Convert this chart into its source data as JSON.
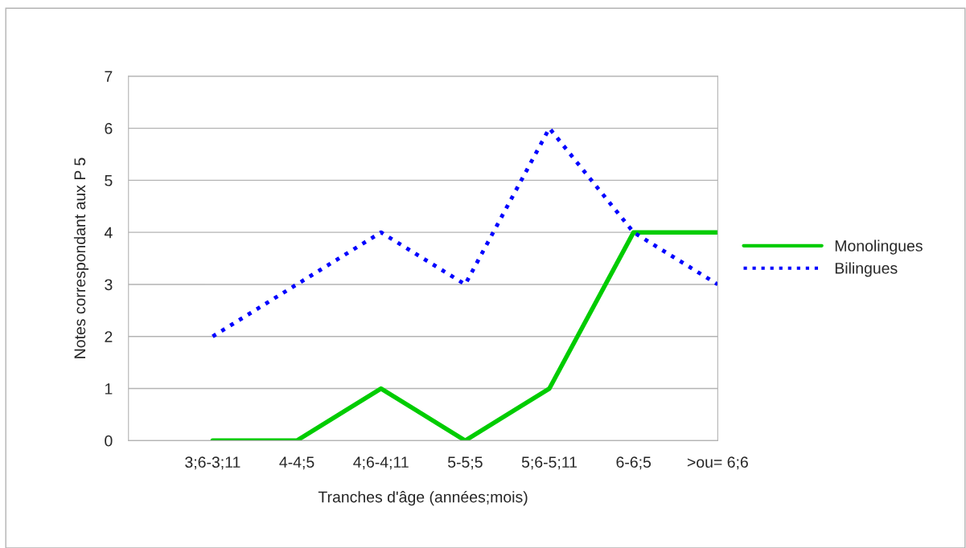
{
  "chart_data": {
    "type": "line",
    "xlabel": "Tranches d'âge (années;mois)",
    "ylabel": "Notes correspondant aux P 5",
    "categories": [
      null,
      "3;6-3;11",
      "4-4;5",
      "4;6-4;11",
      "5-5;5",
      "5;6-5;11",
      "6-6;5",
      ">ou= 6;6"
    ],
    "series": [
      {
        "name": "Monolingues",
        "color": "#00cc00",
        "line_style": "solid",
        "values": [
          null,
          0,
          0,
          1,
          0,
          1,
          4,
          4
        ]
      },
      {
        "name": "Bilingues",
        "color": "#0000ff",
        "line_style": "dotted",
        "values": [
          null,
          2,
          3,
          4,
          3,
          6,
          4,
          3
        ]
      }
    ],
    "ylim": [
      0,
      7
    ],
    "yticks": [
      0,
      1,
      2,
      3,
      4,
      5,
      6,
      7
    ],
    "grid": "y",
    "legend": "right",
    "marker": "none"
  }
}
